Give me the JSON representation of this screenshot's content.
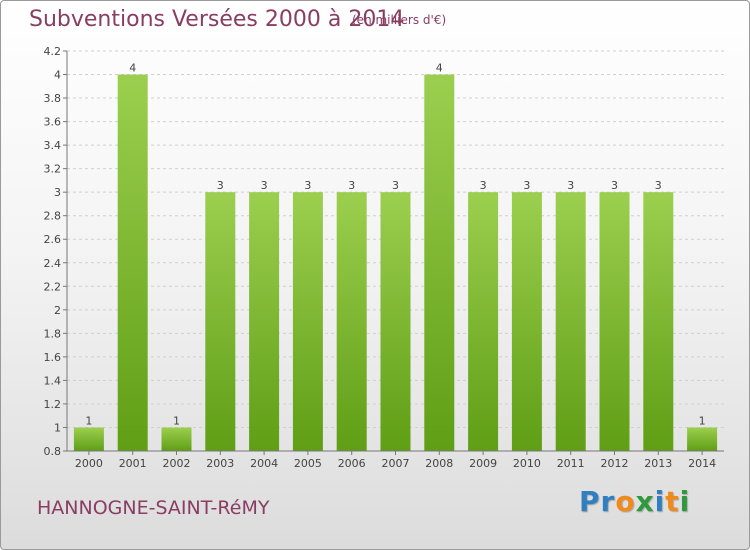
{
  "header": {
    "title": "Subventions Versées 2000 à 2014",
    "unit": "(en milliers d'€)"
  },
  "footer": {
    "commune": "HANNOGNE-SAINT-RéMY"
  },
  "logo": {
    "letters": [
      {
        "char": "P",
        "color": "#2f7fc1"
      },
      {
        "char": "r",
        "color": "#2f7fc1"
      },
      {
        "char": "o",
        "color": "#f28a1a"
      },
      {
        "char": "x",
        "color": "#2f9a3c"
      },
      {
        "char": "i",
        "color": "#2f7fc1"
      },
      {
        "char": "t",
        "color": "#f28a1a"
      },
      {
        "char": "i",
        "color": "#2f9a3c"
      }
    ]
  },
  "colors": {
    "bar_top": "#9ccf4f",
    "bar_bottom": "#5f9e15",
    "title": "#8a3d63",
    "axis": "#777777",
    "grid": "#d0d0d0"
  },
  "chart_data": {
    "type": "bar",
    "categories": [
      "2000",
      "2001",
      "2002",
      "2003",
      "2004",
      "2005",
      "2006",
      "2007",
      "2008",
      "2009",
      "2010",
      "2011",
      "2012",
      "2013",
      "2014"
    ],
    "values": [
      1,
      4,
      1,
      3,
      3,
      3,
      3,
      3,
      4,
      3,
      3,
      3,
      3,
      3,
      1
    ],
    "data_labels": [
      "1",
      "4",
      "1",
      "3",
      "3",
      "3",
      "3",
      "3",
      "4",
      "3",
      "3",
      "3",
      "3",
      "3",
      "1"
    ],
    "ylim": [
      0.8,
      4.2
    ],
    "yticks": [
      0.8,
      1,
      1.2,
      1.4,
      1.6,
      1.8,
      2,
      2.2,
      2.4,
      2.6,
      2.8,
      3,
      3.2,
      3.4,
      3.6,
      3.8,
      4,
      4.2
    ],
    "ytick_labels": [
      "0.8",
      "1",
      "1.2",
      "1.4",
      "1.6",
      "1.8",
      "2",
      "2.2",
      "2.4",
      "2.6",
      "2.8",
      "3",
      "3.2",
      "3.4",
      "3.6",
      "3.8",
      "4",
      "4.2"
    ],
    "grid": true,
    "title": "Subventions Versées 2000 à 2014",
    "xlabel": "",
    "ylabel": ""
  }
}
